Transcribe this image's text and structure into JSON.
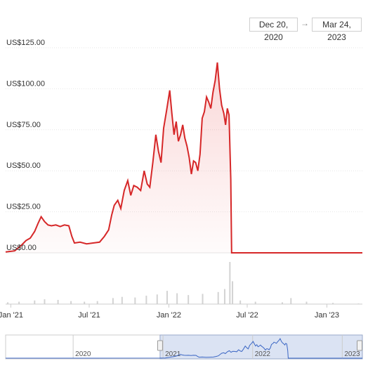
{
  "range": {
    "from": "Dec 20, 2020",
    "arrow": "→",
    "to": "Mar 24, 2023"
  },
  "colors": {
    "line": "#d62728",
    "volume": "#d3d3d3",
    "navigator_line": "#3b66c4",
    "navigator_mask": "#dbe3f3",
    "grid": "#e6e6e6"
  },
  "chart_data": {
    "type": "line",
    "title": "",
    "xlabel": "",
    "ylabel": "",
    "ylim": [
      0,
      125
    ],
    "y_ticks": [
      "US$0.00",
      "US$25.00",
      "US$50.00",
      "US$75.00",
      "US$100.00",
      "US$125.00"
    ],
    "y_tick_values": [
      0,
      25,
      50,
      75,
      100,
      125
    ],
    "x_tick_labels": [
      "Jan '21",
      "Jul '21",
      "Jan '22",
      "Jul '22",
      "Jan '23"
    ],
    "x_tick_dates": [
      "2021-01-01",
      "2021-07-01",
      "2022-01-01",
      "2022-07-01",
      "2023-01-01"
    ],
    "xlim": [
      "2020-12-20",
      "2023-03-24"
    ],
    "series": [
      {
        "points": [
          [
            "2020-12-20",
            0.5
          ],
          [
            "2021-01-10",
            1.2
          ],
          [
            "2021-01-25",
            4.5
          ],
          [
            "2021-02-05",
            7.5
          ],
          [
            "2021-02-15",
            9
          ],
          [
            "2021-02-25",
            13
          ],
          [
            "2021-03-05",
            18
          ],
          [
            "2021-03-12",
            22
          ],
          [
            "2021-03-20",
            19
          ],
          [
            "2021-03-28",
            17
          ],
          [
            "2021-04-05",
            16.5
          ],
          [
            "2021-04-15",
            17
          ],
          [
            "2021-04-25",
            16
          ],
          [
            "2021-05-05",
            17
          ],
          [
            "2021-05-15",
            16.5
          ],
          [
            "2021-05-22",
            10
          ],
          [
            "2021-05-28",
            6
          ],
          [
            "2021-06-10",
            6.5
          ],
          [
            "2021-06-25",
            5.5
          ],
          [
            "2021-07-10",
            6
          ],
          [
            "2021-07-25",
            6.5
          ],
          [
            "2021-08-05",
            10
          ],
          [
            "2021-08-15",
            14
          ],
          [
            "2021-08-22",
            23
          ],
          [
            "2021-08-28",
            29
          ],
          [
            "2021-09-05",
            32
          ],
          [
            "2021-09-12",
            27
          ],
          [
            "2021-09-20",
            38
          ],
          [
            "2021-09-28",
            44
          ],
          [
            "2021-10-05",
            35
          ],
          [
            "2021-10-12",
            41
          ],
          [
            "2021-10-20",
            40
          ],
          [
            "2021-10-28",
            38
          ],
          [
            "2021-11-05",
            50
          ],
          [
            "2021-11-12",
            42
          ],
          [
            "2021-11-18",
            40
          ],
          [
            "2021-11-25",
            55
          ],
          [
            "2021-12-02",
            72
          ],
          [
            "2021-12-08",
            62
          ],
          [
            "2021-12-14",
            55
          ],
          [
            "2021-12-20",
            76
          ],
          [
            "2021-12-27",
            87
          ],
          [
            "2022-01-03",
            99
          ],
          [
            "2022-01-08",
            85
          ],
          [
            "2022-01-13",
            72
          ],
          [
            "2022-01-18",
            80
          ],
          [
            "2022-01-23",
            68
          ],
          [
            "2022-01-28",
            72
          ],
          [
            "2022-02-02",
            78
          ],
          [
            "2022-02-07",
            70
          ],
          [
            "2022-02-12",
            65
          ],
          [
            "2022-02-17",
            58
          ],
          [
            "2022-02-22",
            48
          ],
          [
            "2022-02-27",
            56
          ],
          [
            "2022-03-04",
            55
          ],
          [
            "2022-03-09",
            50
          ],
          [
            "2022-03-14",
            60
          ],
          [
            "2022-03-19",
            82
          ],
          [
            "2022-03-24",
            86
          ],
          [
            "2022-03-29",
            95
          ],
          [
            "2022-04-03",
            92
          ],
          [
            "2022-04-08",
            88
          ],
          [
            "2022-04-13",
            98
          ],
          [
            "2022-04-18",
            105
          ],
          [
            "2022-04-23",
            116
          ],
          [
            "2022-04-28",
            100
          ],
          [
            "2022-05-03",
            90
          ],
          [
            "2022-05-08",
            85
          ],
          [
            "2022-05-12",
            78
          ],
          [
            "2022-05-16",
            88
          ],
          [
            "2022-05-20",
            84
          ],
          [
            "2022-05-24",
            45
          ],
          [
            "2022-05-26",
            0
          ],
          [
            "2023-03-24",
            0
          ]
        ]
      }
    ],
    "volume": [
      [
        "2020-12-25",
        3
      ],
      [
        "2021-01-20",
        4
      ],
      [
        "2021-02-25",
        6
      ],
      [
        "2021-03-20",
        8
      ],
      [
        "2021-04-20",
        7
      ],
      [
        "2021-05-20",
        5
      ],
      [
        "2021-06-20",
        4
      ],
      [
        "2021-07-20",
        5
      ],
      [
        "2021-08-25",
        10
      ],
      [
        "2021-09-15",
        12
      ],
      [
        "2021-10-15",
        11
      ],
      [
        "2021-11-10",
        14
      ],
      [
        "2021-12-05",
        16
      ],
      [
        "2021-12-28",
        22
      ],
      [
        "2022-01-20",
        18
      ],
      [
        "2022-02-15",
        15
      ],
      [
        "2022-03-20",
        17
      ],
      [
        "2022-04-25",
        20
      ],
      [
        "2022-05-10",
        25
      ],
      [
        "2022-05-22",
        70
      ],
      [
        "2022-05-28",
        38
      ],
      [
        "2022-06-15",
        6
      ],
      [
        "2022-07-20",
        4
      ],
      [
        "2022-09-20",
        3
      ],
      [
        "2022-10-10",
        10
      ],
      [
        "2022-11-15",
        4
      ],
      [
        "2023-01-15",
        2
      ],
      [
        "2023-03-15",
        1
      ]
    ],
    "navigator": {
      "year_labels": [
        "2020",
        "2021",
        "2022",
        "2023"
      ],
      "year_dates": [
        "2020-01-01",
        "2021-01-01",
        "2022-01-01",
        "2023-01-01"
      ],
      "xlim": [
        "2019-04-01",
        "2023-03-24"
      ],
      "window": [
        "2020-12-20",
        "2023-03-24"
      ]
    }
  }
}
